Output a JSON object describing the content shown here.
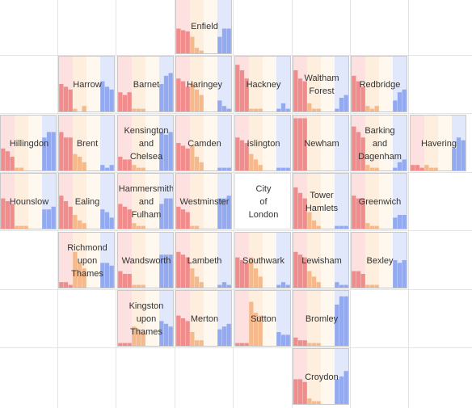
{
  "colors": {
    "band_bg": [
      "#fde0e0",
      "#fdeede",
      "#fff8ee",
      "#e2e8fb"
    ],
    "bar_group": [
      "#f08c8c",
      "#f5b98c",
      "#fbe0b0",
      "#93aaf0"
    ]
  },
  "chart_data": {
    "type": "bar",
    "note_type": "tile-grid of small multiples, 12 bars per tile grouped in 4 coloured bands of 3",
    "ylim": [
      0,
      1
    ],
    "grid_columns": 8,
    "grid_rows": 7,
    "tiles": [
      {
        "name": "Enfield",
        "col": 3,
        "row": 0,
        "values": [
          0.45,
          0.42,
          0.4,
          0.3,
          0.1,
          0.05,
          0.0,
          0.0,
          0.0,
          0.3,
          0.45,
          0.45
        ]
      },
      {
        "name": "Harrow",
        "col": 1,
        "row": 1,
        "values": [
          0.5,
          0.45,
          0.4,
          0.05,
          0.0,
          0.1,
          0.0,
          0.0,
          0.0,
          0.55,
          0.45,
          0.4
        ]
      },
      {
        "name": "Barnet",
        "col": 2,
        "row": 1,
        "values": [
          0.35,
          0.3,
          0.35,
          0.05,
          0.05,
          0.05,
          0.0,
          0.0,
          0.0,
          0.5,
          0.65,
          0.7
        ]
      },
      {
        "name": "Haringey",
        "col": 3,
        "row": 1,
        "values": [
          0.6,
          0.55,
          0.45,
          0.5,
          0.4,
          0.3,
          0.0,
          0.0,
          0.0,
          0.2,
          0.1,
          0.05
        ]
      },
      {
        "name": "Hackney",
        "col": 4,
        "row": 1,
        "values": [
          0.85,
          0.75,
          0.6,
          0.05,
          0.05,
          0.05,
          0.0,
          0.0,
          0.0,
          0.05,
          0.15,
          0.05
        ]
      },
      {
        "name": "Waltham\nForest",
        "col": 5,
        "row": 1,
        "values": [
          0.75,
          0.6,
          0.55,
          0.15,
          0.05,
          0.05,
          0.0,
          0.0,
          0.0,
          0.05,
          0.25,
          0.3
        ]
      },
      {
        "name": "Redbridge",
        "col": 6,
        "row": 1,
        "values": [
          0.65,
          0.55,
          0.45,
          0.1,
          0.05,
          0.1,
          0.0,
          0.0,
          0.0,
          0.2,
          0.35,
          0.4
        ]
      },
      {
        "name": "Hillingdon",
        "col": 0,
        "row": 2,
        "values": [
          0.4,
          0.35,
          0.25,
          0.05,
          0.05,
          0.0,
          0.0,
          0.0,
          0.0,
          0.6,
          0.7,
          0.7
        ]
      },
      {
        "name": "Brent",
        "col": 1,
        "row": 2,
        "values": [
          0.7,
          0.6,
          0.6,
          0.3,
          0.25,
          0.15,
          0.0,
          0.0,
          0.0,
          0.1,
          0.05,
          0.1
        ]
      },
      {
        "name": "Kensington\nand\nChelsea",
        "col": 2,
        "row": 2,
        "values": [
          0.25,
          0.2,
          0.2,
          0.1,
          0.05,
          0.05,
          0.0,
          0.0,
          0.0,
          0.7,
          0.65,
          0.7
        ]
      },
      {
        "name": "Camden",
        "col": 3,
        "row": 2,
        "values": [
          0.5,
          0.45,
          0.4,
          0.45,
          0.25,
          0.15,
          0.0,
          0.0,
          0.0,
          0.05,
          0.05,
          0.05
        ]
      },
      {
        "name": "Islington",
        "col": 4,
        "row": 2,
        "values": [
          0.6,
          0.55,
          0.5,
          0.3,
          0.2,
          0.1,
          0.0,
          0.0,
          0.0,
          0.05,
          0.05,
          0.05
        ]
      },
      {
        "name": "Newham",
        "col": 5,
        "row": 2,
        "values": [
          0.95,
          0.95,
          0.95,
          0.0,
          0.0,
          0.0,
          0.0,
          0.0,
          0.0,
          0.0,
          0.0,
          0.0
        ]
      },
      {
        "name": "Barking\nand\nDagenham",
        "col": 6,
        "row": 2,
        "values": [
          0.8,
          0.7,
          0.6,
          0.1,
          0.05,
          0.05,
          0.0,
          0.0,
          0.0,
          0.05,
          0.15,
          0.2
        ]
      },
      {
        "name": "Havering",
        "col": 7,
        "row": 2,
        "values": [
          0.1,
          0.1,
          0.05,
          0.1,
          0.05,
          0.05,
          0.0,
          0.0,
          0.0,
          0.4,
          0.6,
          0.55
        ]
      },
      {
        "name": "Hounslow",
        "col": 0,
        "row": 3,
        "values": [
          0.55,
          0.5,
          0.45,
          0.05,
          0.05,
          0.05,
          0.0,
          0.0,
          0.0,
          0.35,
          0.35,
          0.4
        ]
      },
      {
        "name": "Ealing",
        "col": 1,
        "row": 3,
        "values": [
          0.6,
          0.5,
          0.4,
          0.25,
          0.15,
          0.1,
          0.0,
          0.0,
          0.0,
          0.35,
          0.3,
          0.2
        ]
      },
      {
        "name": "Hammersmith\nand\nFulham",
        "col": 2,
        "row": 3,
        "values": [
          0.45,
          0.4,
          0.35,
          0.1,
          0.05,
          0.05,
          0.0,
          0.0,
          0.0,
          0.45,
          0.55,
          0.55
        ]
      },
      {
        "name": "Westminster",
        "col": 3,
        "row": 3,
        "values": [
          0.4,
          0.35,
          0.3,
          0.05,
          0.05,
          0.0,
          0.0,
          0.0,
          0.0,
          0.55,
          0.55,
          0.6
        ]
      },
      {
        "name": "City\nof\nLondon",
        "col": 4,
        "row": 3,
        "empty": true
      },
      {
        "name": "Tower\nHamlets",
        "col": 5,
        "row": 3,
        "values": [
          0.75,
          0.65,
          0.55,
          0.3,
          0.15,
          0.05,
          0.0,
          0.0,
          0.0,
          0.05,
          0.05,
          0.05
        ]
      },
      {
        "name": "Greenwich",
        "col": 6,
        "row": 3,
        "values": [
          0.6,
          0.55,
          0.55,
          0.1,
          0.05,
          0.05,
          0.0,
          0.0,
          0.0,
          0.2,
          0.25,
          0.25
        ]
      },
      {
        "name": "Richmond\nupon\nThames",
        "col": 1,
        "row": 4,
        "values": [
          0.1,
          0.1,
          0.05,
          0.65,
          0.45,
          0.35,
          0.0,
          0.0,
          0.0,
          0.45,
          0.45,
          0.4
        ]
      },
      {
        "name": "Wandsworth",
        "col": 2,
        "row": 4,
        "values": [
          0.3,
          0.25,
          0.25,
          0.05,
          0.05,
          0.05,
          0.0,
          0.0,
          0.0,
          0.6,
          0.6,
          0.6
        ]
      },
      {
        "name": "Lambeth",
        "col": 3,
        "row": 4,
        "values": [
          0.65,
          0.6,
          0.55,
          0.35,
          0.2,
          0.1,
          0.0,
          0.0,
          0.0,
          0.05,
          0.1,
          0.05
        ]
      },
      {
        "name": "Southwark",
        "col": 4,
        "row": 4,
        "values": [
          0.55,
          0.5,
          0.45,
          0.55,
          0.35,
          0.2,
          0.0,
          0.0,
          0.0,
          0.05,
          0.1,
          0.05
        ]
      },
      {
        "name": "Lewisham",
        "col": 5,
        "row": 4,
        "values": [
          0.65,
          0.6,
          0.55,
          0.3,
          0.2,
          0.1,
          0.0,
          0.0,
          0.0,
          0.1,
          0.05,
          0.05
        ]
      },
      {
        "name": "Bexley",
        "col": 6,
        "row": 4,
        "values": [
          0.3,
          0.3,
          0.25,
          0.05,
          0.05,
          0.05,
          0.0,
          0.0,
          0.0,
          0.5,
          0.45,
          0.5
        ]
      },
      {
        "name": "Kingston\nupon\nThames",
        "col": 2,
        "row": 5,
        "values": [
          0.05,
          0.05,
          0.05,
          0.35,
          0.3,
          0.25,
          0.0,
          0.0,
          0.0,
          0.45,
          0.4,
          0.35
        ]
      },
      {
        "name": "Merton",
        "col": 3,
        "row": 5,
        "values": [
          0.55,
          0.5,
          0.45,
          0.25,
          0.1,
          0.1,
          0.0,
          0.0,
          0.0,
          0.3,
          0.35,
          0.4
        ]
      },
      {
        "name": "Sutton",
        "col": 4,
        "row": 5,
        "values": [
          0.05,
          0.05,
          0.05,
          0.8,
          0.6,
          0.55,
          0.0,
          0.0,
          0.0,
          0.25,
          0.2,
          0.2
        ]
      },
      {
        "name": "Bromley",
        "col": 5,
        "row": 5,
        "values": [
          0.15,
          0.1,
          0.1,
          0.05,
          0.05,
          0.05,
          0.0,
          0.0,
          0.0,
          0.75,
          0.9,
          0.9
        ]
      },
      {
        "name": "Croydon",
        "col": 5,
        "row": 6,
        "values": [
          0.45,
          0.45,
          0.4,
          0.1,
          0.05,
          0.05,
          0.0,
          0.0,
          0.0,
          0.45,
          0.5,
          0.6
        ]
      }
    ]
  }
}
